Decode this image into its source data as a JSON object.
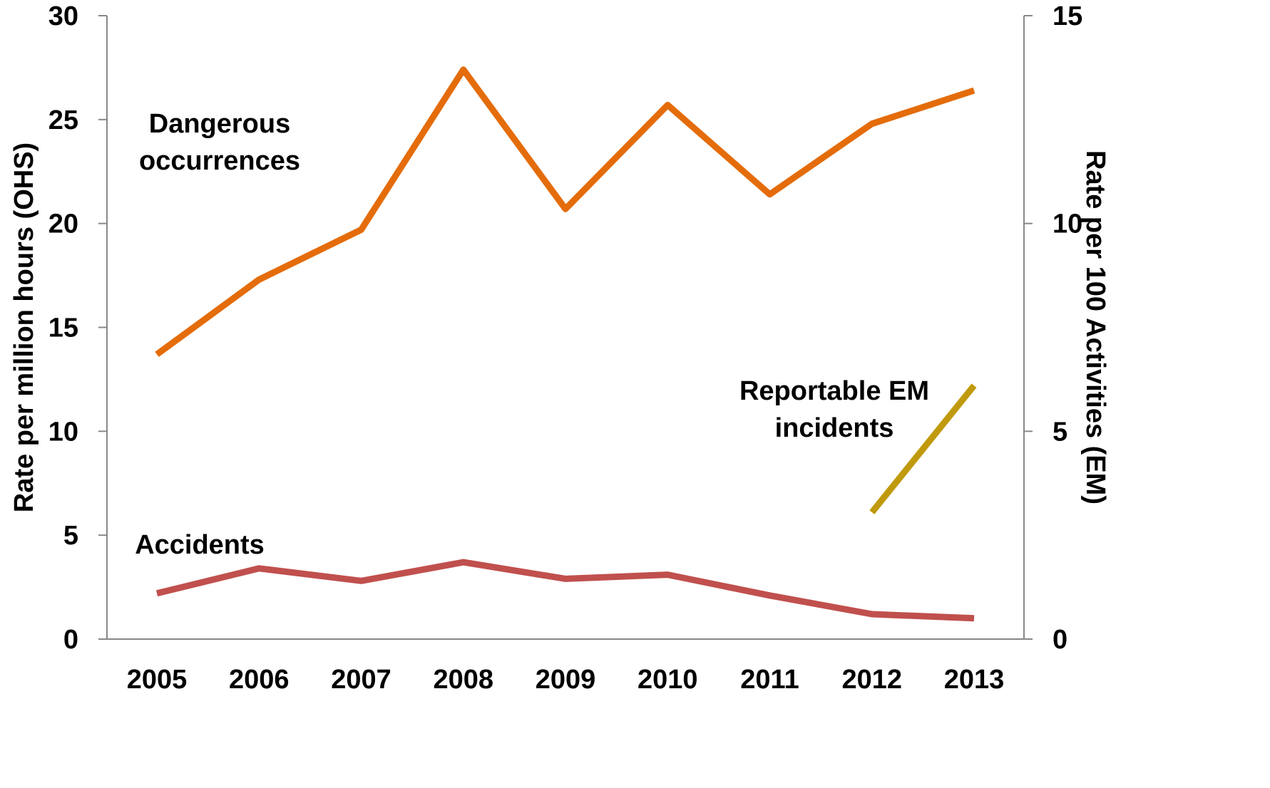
{
  "chart_data": {
    "type": "line",
    "categories": [
      "2005",
      "2006",
      "2007",
      "2008",
      "2009",
      "2010",
      "2011",
      "2012",
      "2013"
    ],
    "left_axis": {
      "label": "Rate per million hours (OHS)",
      "range": [
        0,
        30
      ],
      "ticks": [
        "0",
        "5",
        "10",
        "15",
        "20",
        "25",
        "30"
      ]
    },
    "right_axis": {
      "label": "Rate per 100 Activities (EM)",
      "range": [
        0,
        15
      ],
      "ticks": [
        "0",
        "5",
        "10",
        "15"
      ]
    },
    "series": [
      {
        "name": "Dangerous occurrences",
        "label_lines": [
          "Dangerous",
          "occurrences"
        ],
        "axis": "left",
        "color": "#E46C0A",
        "values": [
          13.7,
          17.3,
          19.7,
          27.4,
          20.7,
          25.7,
          21.4,
          24.8,
          26.4
        ]
      },
      {
        "name": "Accidents",
        "label_lines": [
          "Accidents"
        ],
        "axis": "left",
        "color": "#C0504D",
        "values": [
          2.2,
          3.4,
          2.8,
          3.7,
          2.9,
          3.1,
          2.1,
          1.2,
          1.0
        ]
      },
      {
        "name": "Reportable EM incidents",
        "label_lines": [
          "Reportable EM",
          "incidents"
        ],
        "axis": "right",
        "color": "#C09A0C",
        "values": [
          null,
          null,
          null,
          null,
          null,
          null,
          null,
          3.05,
          6.1
        ]
      }
    ],
    "grid": false,
    "legend": "none (inline labels)"
  }
}
